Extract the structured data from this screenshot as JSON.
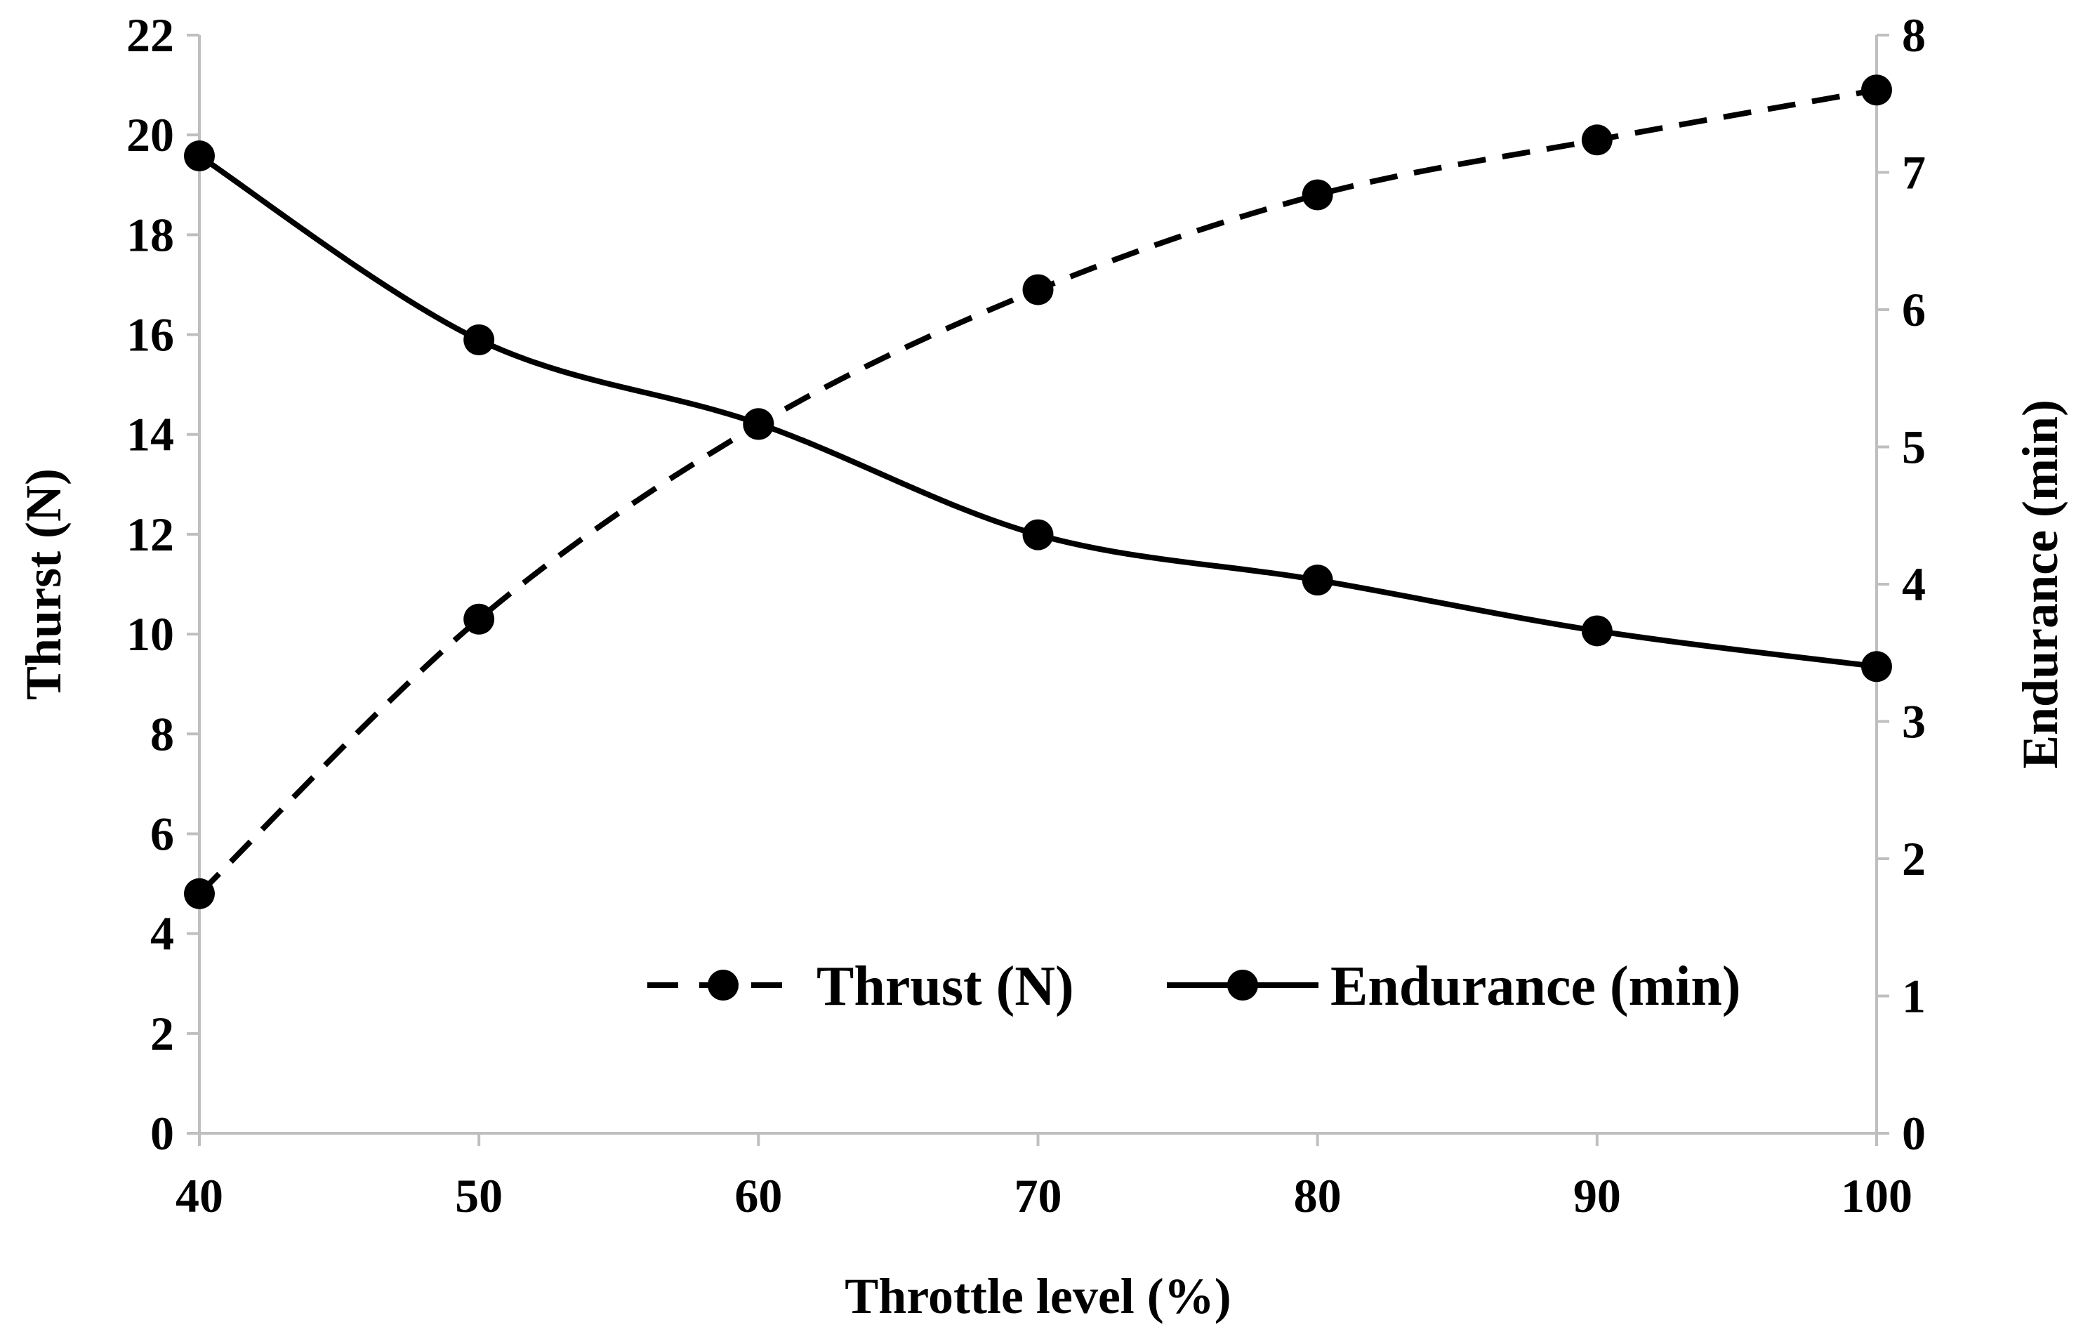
{
  "chart_data": {
    "type": "line",
    "title": "",
    "xlabel": "Throttle level (%)",
    "ylabel_left": "Thurst (N)",
    "ylabel_right": "Endurance (min)",
    "x": [
      40,
      50,
      60,
      70,
      80,
      90,
      100
    ],
    "x_ticks": [
      "40",
      "50",
      "60",
      "70",
      "80",
      "90",
      "100"
    ],
    "xlim": [
      40,
      100
    ],
    "ylim_left": [
      0,
      22
    ],
    "y_ticks_left": [
      "0",
      "2",
      "4",
      "6",
      "8",
      "10",
      "12",
      "14",
      "16",
      "18",
      "20",
      "22"
    ],
    "ylim_right": [
      0,
      8
    ],
    "y_ticks_right": [
      "0",
      "1",
      "2",
      "3",
      "4",
      "5",
      "6",
      "7",
      "8"
    ],
    "grid": false,
    "legend_position": "bottom-right",
    "series": [
      {
        "name": "Thrust (N)",
        "axis": "left",
        "style": "dashed",
        "marker": "circle",
        "values": [
          4.8,
          10.3,
          14.2,
          16.9,
          18.8,
          19.9,
          20.9
        ]
      },
      {
        "name": "Endurance (min)",
        "axis": "right",
        "style": "solid",
        "marker": "circle",
        "values": [
          7.12,
          5.78,
          5.17,
          4.36,
          4.03,
          3.66,
          3.4
        ]
      }
    ],
    "colors": {
      "line": "#000000",
      "axis": "#bfbfbf"
    }
  }
}
